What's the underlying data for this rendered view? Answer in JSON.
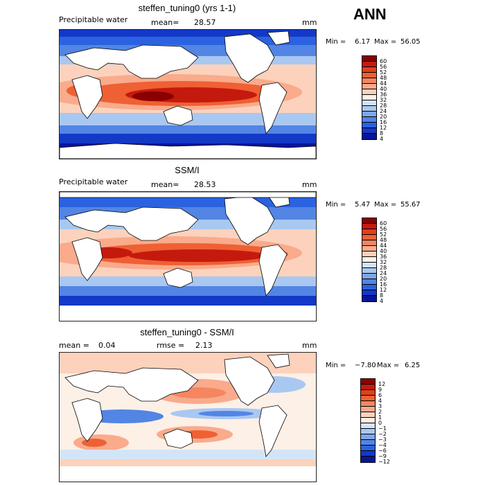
{
  "season": "ANN",
  "panels": [
    {
      "title": "steffen_tuning0 (yrs 1-1)",
      "left_label": "Precipitable water",
      "stat_label": "mean=",
      "stat_value": "28.57",
      "stat2_label": "",
      "stat2_value": "",
      "units": "mm",
      "min_label": "Min =",
      "min_value": "6.17",
      "max_label": "Max =",
      "max_value": "56.05",
      "colorbar": {
        "labels": [
          "60",
          "56",
          "52",
          "48",
          "44",
          "40",
          "36",
          "32",
          "28",
          "24",
          "20",
          "16",
          "12",
          "8",
          "4"
        ],
        "colors": [
          "#8b0000",
          "#c41a0e",
          "#e0401c",
          "#ef6034",
          "#f58660",
          "#f9ab8c",
          "#fcd2bc",
          "#fdf0e6",
          "#d4e4f7",
          "#a9c8f1",
          "#7ea7ea",
          "#5285e4",
          "#2b62e0",
          "#1438c8",
          "#08159a"
        ]
      }
    },
    {
      "title": "SSM/I",
      "left_label": "Precipitable water",
      "stat_label": "mean=",
      "stat_value": "28.53",
      "stat2_label": "",
      "stat2_value": "",
      "units": "mm",
      "min_label": "Min =",
      "min_value": "5.47",
      "max_label": "Max =",
      "max_value": "55.67",
      "colorbar": {
        "labels": [
          "60",
          "56",
          "52",
          "48",
          "44",
          "40",
          "36",
          "32",
          "28",
          "24",
          "20",
          "16",
          "12",
          "8",
          "4"
        ],
        "colors": [
          "#8b0000",
          "#c41a0e",
          "#e0401c",
          "#ef6034",
          "#f58660",
          "#f9ab8c",
          "#fcd2bc",
          "#fdf0e6",
          "#d4e4f7",
          "#a9c8f1",
          "#7ea7ea",
          "#5285e4",
          "#2b62e0",
          "#1438c8",
          "#08159a"
        ]
      }
    },
    {
      "title": "steffen_tuning0 - SSM/I",
      "left_label": "",
      "stat_label": "mean =",
      "stat_value": "0.04",
      "stat2_label": "rmse =",
      "stat2_value": "2.13",
      "units": "mm",
      "min_label": "Min =",
      "min_value": "−7.80",
      "max_label": "Max =",
      "max_value": "6.25",
      "colorbar": {
        "labels": [
          "12",
          "9",
          "6",
          "4",
          "3",
          "2",
          "1",
          "0",
          "−1",
          "−2",
          "−3",
          "−4",
          "−6",
          "−9",
          "−12"
        ],
        "colors": [
          "#8b0000",
          "#c41a0e",
          "#e0401c",
          "#ef6034",
          "#f58660",
          "#f9ab8c",
          "#fcd2bc",
          "#fdf0e6",
          "#d4e4f7",
          "#a9c8f1",
          "#7ea7ea",
          "#5285e4",
          "#2b62e0",
          "#1438c8",
          "#08159a"
        ]
      }
    }
  ]
}
